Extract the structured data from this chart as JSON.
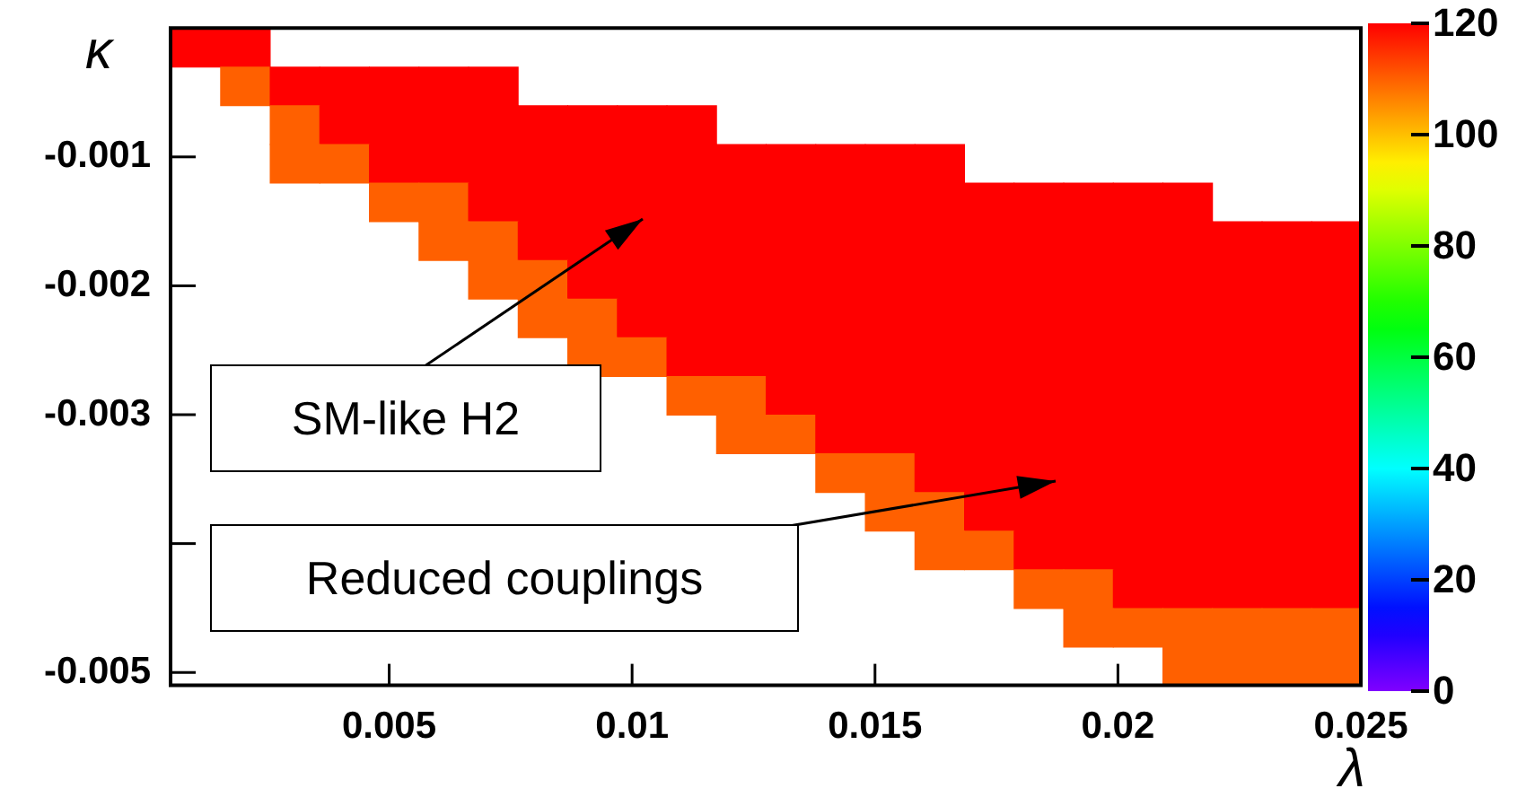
{
  "chart_data": {
    "type": "heatmap",
    "xlabel": "λ",
    "ylabel": "κ",
    "xlim": [
      0.0005,
      0.025
    ],
    "ylim": [
      -0.0051,
      0
    ],
    "xticks": [
      0.005,
      0.01,
      0.015,
      0.02,
      0.025
    ],
    "yticks": [
      -0.001,
      -0.002,
      -0.003,
      {
        "value": -0.004,
        "label": null
      },
      -0.005
    ],
    "clim": [
      0,
      120
    ],
    "cticks": [
      0,
      20,
      40,
      60,
      80,
      100,
      120
    ],
    "cells": [
      [
        120,
        120,
        null,
        null,
        null,
        null,
        null,
        null,
        null,
        null,
        null,
        null,
        null,
        null,
        null,
        null,
        null,
        null,
        null,
        null,
        null,
        null,
        null,
        null
      ],
      [
        null,
        110,
        120,
        120,
        120,
        120,
        120,
        null,
        null,
        null,
        null,
        null,
        null,
        null,
        null,
        null,
        null,
        null,
        null,
        null,
        null,
        null,
        null,
        null
      ],
      [
        null,
        null,
        110,
        120,
        120,
        120,
        120,
        120,
        120,
        120,
        120,
        null,
        null,
        null,
        null,
        null,
        null,
        null,
        null,
        null,
        null,
        null,
        null,
        null
      ],
      [
        null,
        null,
        110,
        110,
        120,
        120,
        120,
        120,
        120,
        120,
        120,
        120,
        120,
        120,
        120,
        120,
        null,
        null,
        null,
        null,
        null,
        null,
        null,
        null
      ],
      [
        null,
        null,
        null,
        null,
        110,
        110,
        120,
        120,
        120,
        120,
        120,
        120,
        120,
        120,
        120,
        120,
        120,
        120,
        120,
        120,
        120,
        null,
        null,
        null
      ],
      [
        null,
        null,
        null,
        null,
        null,
        110,
        110,
        120,
        120,
        120,
        120,
        120,
        120,
        120,
        120,
        120,
        120,
        120,
        120,
        120,
        120,
        120,
        120,
        120
      ],
      [
        null,
        null,
        null,
        null,
        null,
        null,
        110,
        110,
        120,
        120,
        120,
        120,
        120,
        120,
        120,
        120,
        120,
        120,
        120,
        120,
        120,
        120,
        120,
        120
      ],
      [
        null,
        null,
        null,
        null,
        null,
        null,
        null,
        110,
        110,
        120,
        120,
        120,
        120,
        120,
        120,
        120,
        120,
        120,
        120,
        120,
        120,
        120,
        120,
        120
      ],
      [
        null,
        null,
        null,
        null,
        null,
        null,
        null,
        null,
        110,
        110,
        120,
        120,
        120,
        120,
        120,
        120,
        120,
        120,
        120,
        120,
        120,
        120,
        120,
        120
      ],
      [
        null,
        null,
        null,
        null,
        null,
        null,
        null,
        null,
        null,
        null,
        110,
        110,
        120,
        120,
        120,
        120,
        120,
        120,
        120,
        120,
        120,
        120,
        120,
        120
      ],
      [
        null,
        null,
        null,
        null,
        null,
        null,
        null,
        null,
        null,
        null,
        null,
        110,
        110,
        120,
        120,
        120,
        120,
        120,
        120,
        120,
        120,
        120,
        120,
        120
      ],
      [
        null,
        null,
        null,
        null,
        null,
        null,
        null,
        null,
        null,
        null,
        null,
        null,
        null,
        110,
        110,
        120,
        120,
        120,
        120,
        120,
        120,
        120,
        120,
        120
      ],
      [
        null,
        null,
        null,
        null,
        null,
        null,
        null,
        null,
        null,
        null,
        null,
        null,
        null,
        null,
        110,
        110,
        120,
        120,
        120,
        120,
        120,
        120,
        120,
        120
      ],
      [
        null,
        null,
        null,
        null,
        null,
        null,
        null,
        null,
        null,
        null,
        null,
        null,
        null,
        null,
        null,
        110,
        110,
        120,
        120,
        120,
        120,
        120,
        120,
        120
      ],
      [
        null,
        null,
        null,
        null,
        null,
        null,
        null,
        null,
        null,
        null,
        null,
        null,
        null,
        null,
        null,
        null,
        null,
        110,
        110,
        120,
        120,
        120,
        120,
        120
      ],
      [
        null,
        null,
        null,
        null,
        null,
        null,
        null,
        null,
        null,
        null,
        null,
        null,
        null,
        null,
        null,
        null,
        null,
        null,
        110,
        110,
        110,
        110,
        110,
        110
      ],
      [
        null,
        null,
        null,
        null,
        null,
        null,
        null,
        null,
        null,
        null,
        null,
        null,
        null,
        null,
        null,
        null,
        null,
        null,
        null,
        null,
        110,
        110,
        110,
        110
      ]
    ],
    "annotations": [
      "SM-like H2",
      "Reduced couplings"
    ]
  }
}
